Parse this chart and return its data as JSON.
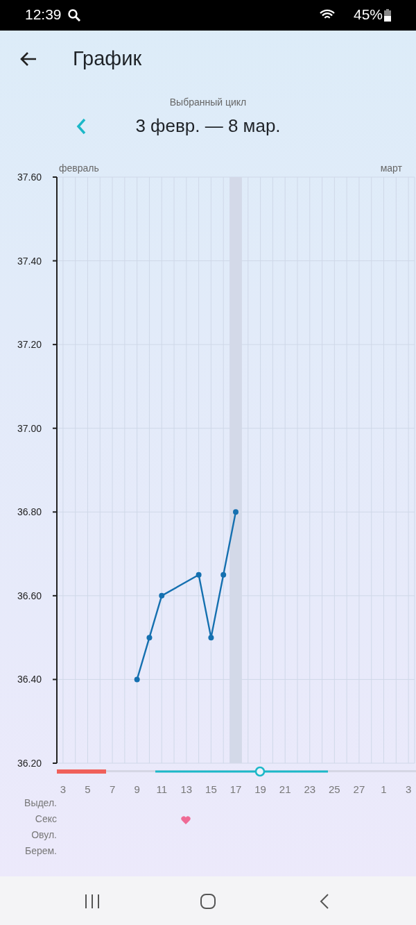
{
  "chart_data": {
    "type": "line",
    "title": "График",
    "subtitle": "Выбранный цикл",
    "categories": [
      "3",
      null,
      "5",
      null,
      "7",
      null,
      "9",
      null,
      "11",
      null,
      "13",
      null,
      "15",
      null,
      "17",
      null,
      "19",
      null,
      "21",
      null,
      "23",
      null,
      "25",
      null,
      "27",
      null,
      "1",
      null,
      "3"
    ],
    "series": [
      {
        "color": "#1570b0",
        "values": [
          null,
          null,
          null,
          null,
          null,
          null,
          36.4,
          36.5,
          36.6,
          null,
          null,
          36.65,
          36.5,
          36.65,
          36.8,
          null,
          null,
          null,
          null,
          null,
          null,
          null,
          null,
          null,
          null,
          null,
          null,
          null,
          null
        ]
      }
    ],
    "ylim": [
      36.2,
      37.6
    ],
    "yticks": [
      {
        "value": 36.2,
        "label": "36.20"
      },
      {
        "value": 36.4,
        "label": "36.40"
      },
      {
        "value": 36.6,
        "label": "36.60"
      },
      {
        "value": 36.8,
        "label": "36.80"
      },
      {
        "value": 37.0,
        "label": "37.00"
      },
      {
        "value": 37.2,
        "label": "37.20"
      },
      {
        "value": 37.4,
        "label": "37.40"
      },
      {
        "value": 37.6,
        "label": "37.60"
      }
    ],
    "bands": [
      {
        "axis": "x",
        "from": "17",
        "to": "17",
        "color": "#d3d9e8"
      }
    ],
    "grid": true,
    "marker": "circle",
    "line_style": "solid",
    "annotations": [
      "3 февр. — 8 мар.",
      "февраль",
      "март",
      "Выдел.",
      "Секс",
      "Овул.",
      "Берем.",
      "12:39",
      "45%"
    ]
  }
}
